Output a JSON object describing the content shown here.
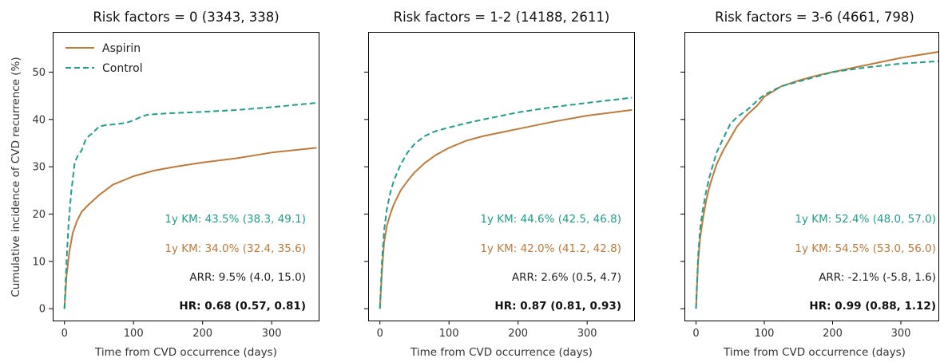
{
  "figure": {
    "ylabel": "Cumulative incidence of CVD recurrence (%)",
    "legend": {
      "placement": "top-left",
      "entries": [
        {
          "name": "Aspirin",
          "color": "#c07a3a",
          "style": "solid"
        },
        {
          "name": "Control",
          "color": "#1f9e89",
          "style": "dashed"
        }
      ]
    }
  },
  "chart_data": [
    {
      "type": "line",
      "title": "Risk factors = 0 (3343, 338)",
      "xlabel": "Time from CVD occurrence (days)",
      "xlim": [
        -17,
        368
      ],
      "ylim": [
        -2.5,
        58.5
      ],
      "xticks": [
        0,
        100,
        200,
        300
      ],
      "yticks": [
        0,
        10,
        20,
        30,
        40,
        50
      ],
      "show_ytick_labels": true,
      "grid": false,
      "series": [
        {
          "name": "Aspirin",
          "color": "#c07a3a",
          "style": "solid",
          "x": [
            0,
            3,
            7,
            12,
            18,
            25,
            35,
            50,
            70,
            100,
            130,
            160,
            200,
            250,
            300,
            365
          ],
          "y": [
            0,
            7,
            12,
            16,
            18.5,
            20.5,
            22,
            24,
            26.2,
            28,
            29.2,
            30,
            30.9,
            31.8,
            33,
            34
          ]
        },
        {
          "name": "Control",
          "color": "#1f9e89",
          "style": "dashed",
          "x": [
            0,
            3,
            6,
            10,
            15,
            20,
            25,
            30,
            35,
            40,
            50,
            60,
            75,
            90,
            100,
            110,
            120,
            150,
            200,
            250,
            300,
            365
          ],
          "y": [
            0,
            10,
            18,
            25,
            31,
            32.5,
            33.5,
            35.5,
            36.5,
            37,
            38.5,
            38.8,
            39,
            39.3,
            39.8,
            40.5,
            41,
            41.3,
            41.6,
            42,
            42.6,
            43.5
          ]
        }
      ],
      "annotations": [
        {
          "text": "1y KM: 43.5% (38.3, 49.1)",
          "color": "#1f9e89",
          "bold": false
        },
        {
          "text": "1y KM: 34.0% (32.4, 35.6)",
          "color": "#c07a3a",
          "bold": false
        },
        {
          "text": "ARR: 9.5% (4.0, 15.0)",
          "color": "#222222",
          "bold": false
        },
        {
          "text": "HR: 0.68 (0.57, 0.81)",
          "color": "#111111",
          "bold": true
        }
      ]
    },
    {
      "type": "line",
      "title": "Risk factors = 1-2 (14188, 2611)",
      "xlabel": "Time from CVD occurrence (days)",
      "xlim": [
        -17,
        368
      ],
      "ylim": [
        -2.5,
        58.5
      ],
      "xticks": [
        0,
        100,
        200,
        300
      ],
      "yticks": [
        0,
        10,
        20,
        30,
        40,
        50
      ],
      "show_ytick_labels": false,
      "grid": false,
      "series": [
        {
          "name": "Aspirin",
          "color": "#c07a3a",
          "style": "solid",
          "x": [
            0,
            3,
            6,
            10,
            15,
            20,
            30,
            40,
            50,
            65,
            80,
            100,
            125,
            150,
            200,
            250,
            300,
            365
          ],
          "y": [
            0,
            8,
            14,
            17.5,
            20,
            22,
            25,
            27,
            28.8,
            30.8,
            32.4,
            34,
            35.5,
            36.5,
            38,
            39.5,
            40.8,
            42
          ]
        },
        {
          "name": "Control",
          "color": "#1f9e89",
          "style": "dashed",
          "x": [
            0,
            3,
            6,
            10,
            15,
            20,
            30,
            40,
            50,
            65,
            80,
            100,
            125,
            150,
            200,
            250,
            300,
            365
          ],
          "y": [
            0,
            10,
            16.5,
            21,
            24.5,
            27,
            30.5,
            33,
            34.8,
            36.5,
            37.5,
            38.3,
            39.2,
            40,
            41.5,
            42.6,
            43.5,
            44.6
          ]
        }
      ],
      "annotations": [
        {
          "text": "1y KM: 44.6% (42.5, 46.8)",
          "color": "#1f9e89",
          "bold": false
        },
        {
          "text": "1y KM: 42.0% (41.2, 42.8)",
          "color": "#c07a3a",
          "bold": false
        },
        {
          "text": "ARR: 2.6% (0.5, 4.7)",
          "color": "#222222",
          "bold": false
        },
        {
          "text": "HR: 0.87 (0.81, 0.93)",
          "color": "#111111",
          "bold": true
        }
      ]
    },
    {
      "type": "line",
      "title": "Risk factors = 3-6 (4661, 798)",
      "xlabel": "Time from CVD occurrence (days)",
      "xlim": [
        -17,
        355
      ],
      "ylim": [
        -2.5,
        58.5
      ],
      "xticks": [
        0,
        100,
        200,
        300
      ],
      "yticks": [
        0,
        10,
        20,
        30,
        40,
        50
      ],
      "show_ytick_labels": false,
      "grid": false,
      "series": [
        {
          "name": "Aspirin",
          "color": "#c07a3a",
          "style": "solid",
          "x": [
            0,
            3,
            6,
            10,
            15,
            20,
            30,
            40,
            50,
            60,
            75,
            90,
            100,
            125,
            150,
            175,
            200,
            250,
            300,
            365
          ],
          "y": [
            0,
            10,
            15,
            19,
            23,
            26,
            30.5,
            33.5,
            36,
            38.5,
            41,
            43,
            44.8,
            47,
            48.2,
            49.2,
            50,
            51.5,
            53,
            54.5
          ]
        },
        {
          "name": "Control",
          "color": "#1f9e89",
          "style": "dashed",
          "x": [
            0,
            3,
            6,
            10,
            15,
            20,
            30,
            40,
            50,
            60,
            75,
            90,
            100,
            125,
            150,
            175,
            200,
            250,
            300,
            365
          ],
          "y": [
            0,
            11,
            17,
            21,
            25,
            28,
            33,
            36,
            39,
            40.5,
            42,
            44,
            45.2,
            47,
            48,
            49,
            50,
            51,
            51.8,
            52.4
          ]
        }
      ],
      "annotations": [
        {
          "text": "1y KM: 52.4% (48.0, 57.0)",
          "color": "#1f9e89",
          "bold": false
        },
        {
          "text": "1y KM: 54.5% (53.0, 56.0)",
          "color": "#c07a3a",
          "bold": false
        },
        {
          "text": "ARR: -2.1% (-5.8, 1.6)",
          "color": "#222222",
          "bold": false
        },
        {
          "text": "HR: 0.99 (0.88, 1.12)",
          "color": "#111111",
          "bold": true
        }
      ]
    }
  ]
}
